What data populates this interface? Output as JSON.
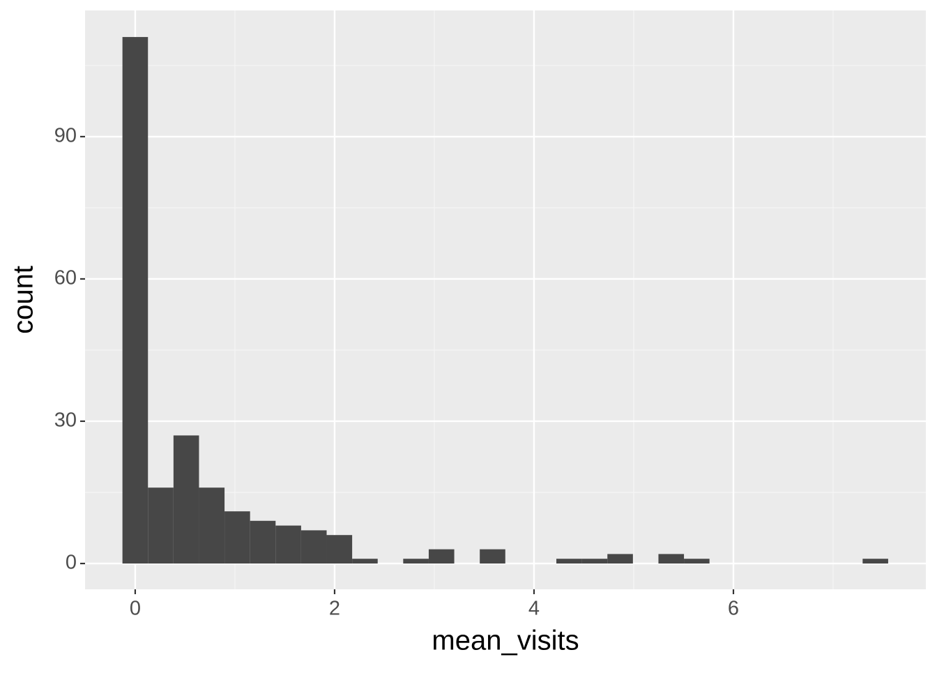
{
  "chart_data": {
    "type": "histogram",
    "x_label": "mean_visits",
    "y_label": "count",
    "bins": [
      -0.128,
      0.128,
      0.384,
      0.64,
      0.896,
      1.152,
      1.408,
      1.664,
      1.92,
      2.176,
      2.432,
      2.688,
      2.944,
      3.2,
      3.456,
      3.712,
      3.968,
      4.224,
      4.48,
      4.736,
      4.992,
      5.248,
      5.504,
      5.76,
      6.016,
      6.272,
      6.528,
      6.784,
      7.04,
      7.296,
      7.552
    ],
    "counts": [
      111,
      16,
      27,
      16,
      11,
      9,
      8,
      7,
      6,
      1,
      0,
      1,
      3,
      0,
      3,
      0,
      0,
      1,
      1,
      2,
      0,
      2,
      1,
      0,
      0,
      0,
      0,
      0,
      0,
      1
    ],
    "color": "#474747",
    "xlim": [
      -0.503,
      7.93
    ],
    "ylim": [
      -5.44,
      116.6
    ],
    "xticks": [
      0,
      2,
      4,
      6
    ],
    "yticks": [
      0,
      30,
      60,
      90
    ],
    "grid": true,
    "minor_grid": true
  }
}
